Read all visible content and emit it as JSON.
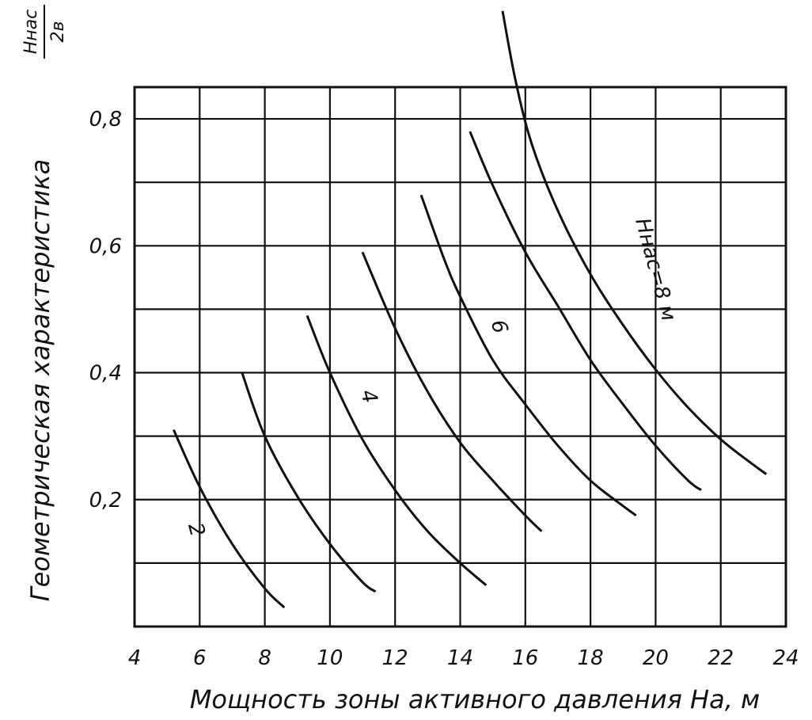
{
  "chart_data": {
    "type": "line",
    "title": "",
    "xlabel": "Мощность зоны активного давления Hа, м",
    "ylabel": "Геометрическая характеристика",
    "ylabel_fraction": {
      "numerator": "Hнас",
      "denominator": "2в"
    },
    "xlim": [
      4,
      24
    ],
    "ylim": [
      0,
      0.85
    ],
    "x_ticks": [
      4,
      6,
      8,
      10,
      12,
      14,
      16,
      18,
      20,
      22,
      24
    ],
    "x_tick_labels": [
      "4",
      "6",
      "8",
      "10",
      "12",
      "14",
      "16",
      "18",
      "20",
      "22",
      "24"
    ],
    "y_ticks": [
      0.2,
      0.4,
      0.6,
      0.8
    ],
    "y_tick_labels": [
      "0,2",
      "0,4",
      "0,6",
      "0,8"
    ],
    "grid": true,
    "series": [
      {
        "name": "2",
        "label_at": [
          5.7,
          0.15
        ],
        "points": [
          [
            5.2,
            0.31
          ],
          [
            6.0,
            0.22
          ],
          [
            7.0,
            0.13
          ],
          [
            8.0,
            0.06
          ],
          [
            8.6,
            0.03
          ]
        ]
      },
      {
        "name": "",
        "points": [
          [
            7.3,
            0.4
          ],
          [
            8.0,
            0.3
          ],
          [
            9.0,
            0.205
          ],
          [
            10.0,
            0.13
          ],
          [
            11.0,
            0.07
          ],
          [
            11.4,
            0.055
          ]
        ]
      },
      {
        "name": "4",
        "label_at": [
          11.0,
          0.36
        ],
        "points": [
          [
            9.3,
            0.49
          ],
          [
            10.0,
            0.4
          ],
          [
            11.0,
            0.295
          ],
          [
            12.0,
            0.215
          ],
          [
            13.0,
            0.15
          ],
          [
            14.0,
            0.1
          ],
          [
            14.8,
            0.065
          ]
        ]
      },
      {
        "name": "",
        "points": [
          [
            11.0,
            0.59
          ],
          [
            12.0,
            0.47
          ],
          [
            13.0,
            0.37
          ],
          [
            14.0,
            0.29
          ],
          [
            15.0,
            0.23
          ],
          [
            16.0,
            0.175
          ],
          [
            16.5,
            0.15
          ]
        ]
      },
      {
        "name": "6",
        "label_at": [
          15.0,
          0.47
        ],
        "points": [
          [
            12.8,
            0.68
          ],
          [
            13.5,
            0.58
          ],
          [
            14.0,
            0.52
          ],
          [
            15.0,
            0.42
          ],
          [
            16.0,
            0.35
          ],
          [
            17.0,
            0.285
          ],
          [
            18.0,
            0.23
          ],
          [
            19.0,
            0.19
          ],
          [
            19.4,
            0.175
          ]
        ]
      },
      {
        "name": "",
        "points": [
          [
            14.3,
            0.78
          ],
          [
            15.0,
            0.695
          ],
          [
            16.0,
            0.59
          ],
          [
            17.0,
            0.505
          ],
          [
            18.0,
            0.42
          ],
          [
            19.0,
            0.35
          ],
          [
            20.0,
            0.285
          ],
          [
            21.0,
            0.23
          ],
          [
            21.4,
            0.215
          ]
        ]
      },
      {
        "name": "Hнас=8 м",
        "label_at": [
          19.8,
          0.56
        ],
        "points": [
          [
            15.3,
            0.97
          ],
          [
            15.7,
            0.86
          ],
          [
            16.2,
            0.76
          ],
          [
            17.0,
            0.655
          ],
          [
            18.0,
            0.555
          ],
          [
            19.0,
            0.475
          ],
          [
            20.0,
            0.405
          ],
          [
            21.0,
            0.345
          ],
          [
            22.0,
            0.295
          ],
          [
            23.0,
            0.255
          ],
          [
            23.4,
            0.24
          ]
        ]
      }
    ]
  }
}
